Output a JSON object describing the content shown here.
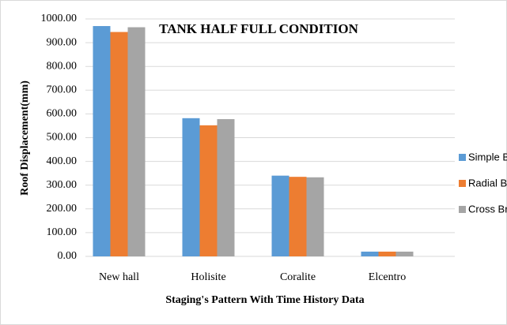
{
  "chart_data": {
    "type": "bar",
    "title": "TANK HALF FULL CONDITION",
    "x_label": "Staging's Pattern With Time History Data",
    "y_label": "Roof Displacement(mm)",
    "categories": [
      "New hall",
      "Holisite",
      "Coralite",
      "Elcentro"
    ],
    "series": [
      {
        "name": "Simple Bracing",
        "color": "#5b9bd5",
        "values": [
          970,
          582,
          340,
          20
        ]
      },
      {
        "name": "Radial Bracing",
        "color": "#ed7d31",
        "values": [
          945,
          552,
          335,
          20
        ]
      },
      {
        "name": "Cross Bracing",
        "color": "#a5a5a5",
        "values": [
          965,
          578,
          333,
          20
        ]
      }
    ],
    "ylim": [
      0,
      1000
    ],
    "yticks": [
      {
        "value": 0,
        "label": "0.00"
      },
      {
        "value": 100,
        "label": "100.00"
      },
      {
        "value": 200,
        "label": "200.00"
      },
      {
        "value": 300,
        "label": "300.00"
      },
      {
        "value": 400,
        "label": "400.00"
      },
      {
        "value": 500,
        "label": "500.00"
      },
      {
        "value": 600,
        "label": "600.00"
      },
      {
        "value": 700,
        "label": "700.00"
      },
      {
        "value": 800,
        "label": "800.00"
      },
      {
        "value": 900,
        "label": "900.00"
      },
      {
        "value": 1000,
        "label": "1000.00"
      }
    ],
    "grid": true,
    "legend": "right"
  }
}
